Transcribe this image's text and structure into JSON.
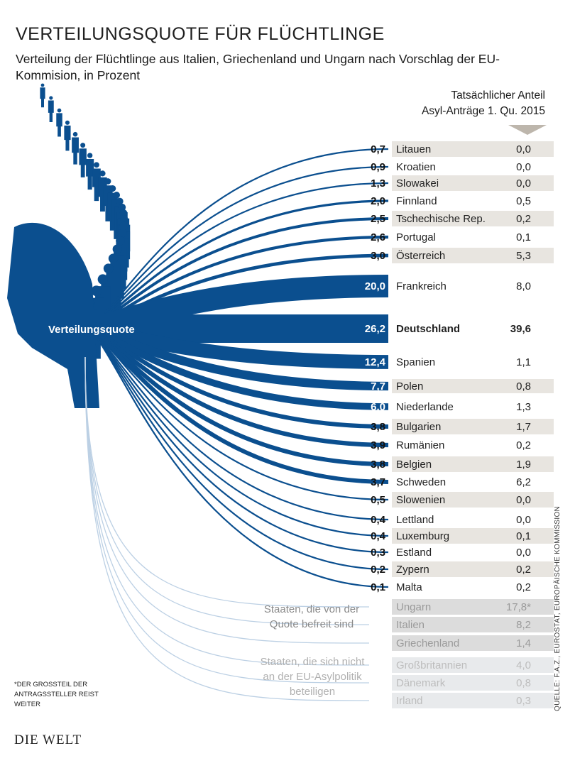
{
  "title": "VERTEILUNGSQUOTE FÜR FLÜCHTLINGE",
  "subtitle": "Verteilung der Flüchtlinge aus Italien, Griechenland und Ungarn nach Vorschlag der EU-Kommision, in Prozent",
  "column_header_line1": "Tatsächlicher Anteil",
  "column_header_line2": "Asyl-Anträge 1. Qu. 2015",
  "center_label": "Verteilungsquote",
  "exempt_note": "Staaten, die von der Quote befreit sind",
  "optout_note": "Staaten, die sich nicht an der EU-Asylpolitik beteiligen",
  "footnote": "*Der Großteil der Antragssteller reist weiter",
  "source": "QUELLE: F.A.Z., EUROSTAT, EUROPÄISCHE KOMMISSION",
  "logo": "DIE WELT",
  "colors": {
    "primary_blue": "#0b4f8f",
    "light_blue": "#bcd0e4",
    "row_stripe": "#e8e5e0"
  },
  "chart_data": {
    "type": "bar",
    "title": "VERTEILUNGSQUOTE FÜR FLÜCHTLINGE",
    "series_labels": [
      "Verteilungsquote",
      "Tatsächlicher Anteil Asyl-Anträge 1. Qu. 2015"
    ],
    "rows": [
      {
        "country": "Litauen",
        "quota": "0,7",
        "actual": "0,0",
        "q": 0.7
      },
      {
        "country": "Kroatien",
        "quota": "0,9",
        "actual": "0,0",
        "q": 0.9
      },
      {
        "country": "Slowakei",
        "quota": "1,3",
        "actual": "0,0",
        "q": 1.3
      },
      {
        "country": "Finnland",
        "quota": "2,0",
        "actual": "0,5",
        "q": 2.0
      },
      {
        "country": "Tschechische Rep.",
        "quota": "2,5",
        "actual": "0,2",
        "q": 2.5
      },
      {
        "country": "Portugal",
        "quota": "2,6",
        "actual": "0,1",
        "q": 2.6
      },
      {
        "country": "Österreich",
        "quota": "3,0",
        "actual": "5,3",
        "q": 3.0
      },
      {
        "country": "Frankreich",
        "quota": "20,0",
        "actual": "8,0",
        "q": 20.0
      },
      {
        "country": "Deutschland",
        "quota": "26,2",
        "actual": "39,6",
        "q": 26.2
      },
      {
        "country": "Spanien",
        "quota": "12,4",
        "actual": "1,1",
        "q": 12.4
      },
      {
        "country": "Polen",
        "quota": "7,7",
        "actual": "0,8",
        "q": 7.7
      },
      {
        "country": "Niederlande",
        "quota": "6,0",
        "actual": "1,3",
        "q": 6.0
      },
      {
        "country": "Bulgarien",
        "quota": "3,8",
        "actual": "1,7",
        "q": 3.8
      },
      {
        "country": "Rumänien",
        "quota": "3,9",
        "actual": "0,2",
        "q": 3.9
      },
      {
        "country": "Belgien",
        "quota": "3,8",
        "actual": "1,9",
        "q": 3.8
      },
      {
        "country": "Schweden",
        "quota": "3,7",
        "actual": "6,2",
        "q": 3.7
      },
      {
        "country": "Slowenien",
        "quota": "0,5",
        "actual": "0,0",
        "q": 0.5
      },
      {
        "country": "Lettland",
        "quota": "0,4",
        "actual": "0,0",
        "q": 0.4
      },
      {
        "country": "Luxemburg",
        "quota": "0,4",
        "actual": "0,1",
        "q": 0.4
      },
      {
        "country": "Estland",
        "quota": "0,3",
        "actual": "0,0",
        "q": 0.3
      },
      {
        "country": "Zypern",
        "quota": "0,2",
        "actual": "0,2",
        "q": 0.2
      },
      {
        "country": "Malta",
        "quota": "0,1",
        "actual": "0,2",
        "q": 0.1
      }
    ],
    "exempt": [
      {
        "country": "Ungarn",
        "actual": "17,8*"
      },
      {
        "country": "Italien",
        "actual": "8,2"
      },
      {
        "country": "Griechenland",
        "actual": "1,4"
      }
    ],
    "optout": [
      {
        "country": "Großbritannien",
        "actual": "4,0"
      },
      {
        "country": "Dänemark",
        "actual": "0,8"
      },
      {
        "country": "Irland",
        "actual": "0,3"
      }
    ]
  }
}
